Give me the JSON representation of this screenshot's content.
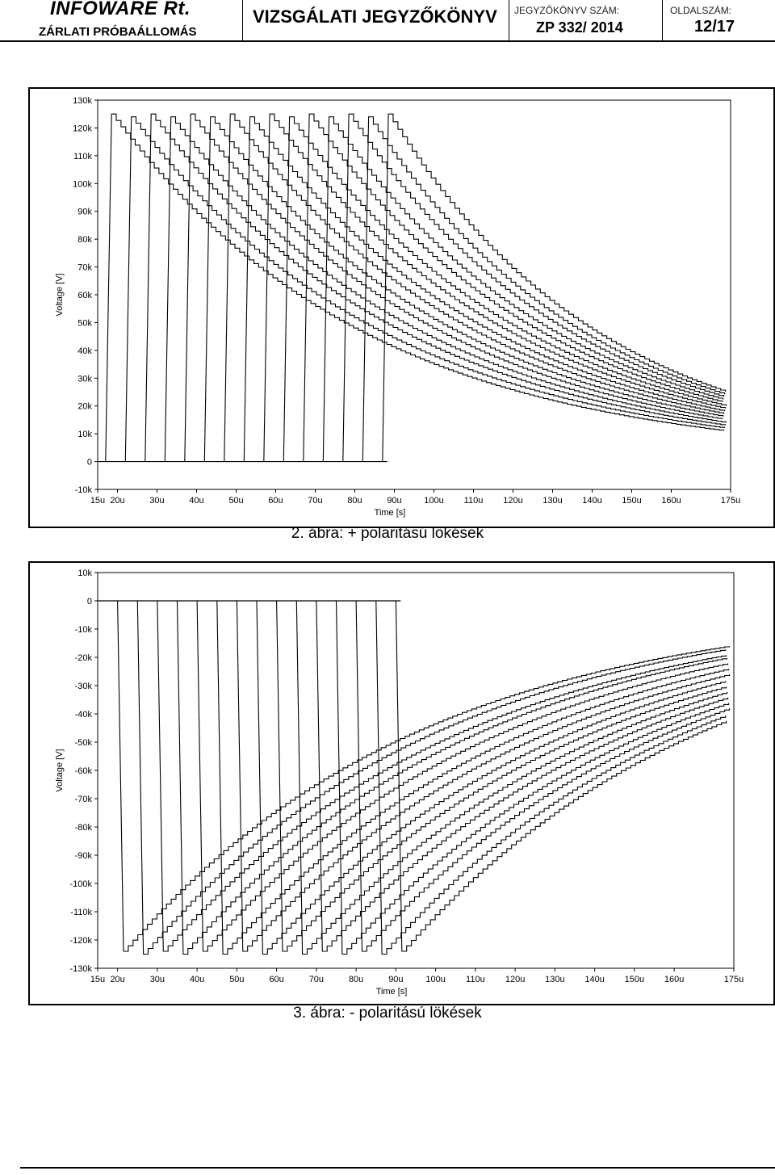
{
  "header": {
    "company": "INFOWARE Rt.",
    "company_sub": "ZÁRLATI PRÓBAÁLLOMÁS",
    "title": "VIZSGÁLATI JEGYZŐKÖNYV",
    "report_label": "JEGYZŐKÖNYV SZÁM:",
    "report_number": "ZP 332/ 2014",
    "page_label": "OLDALSZÁM:",
    "page_number": "12/17"
  },
  "captions": {
    "figure2": "2. ábra:  + polaritású lökések",
    "figure3": "3. ábra:  -  polaritású lökések"
  },
  "chart_data": [
    {
      "type": "line",
      "title": "",
      "xlabel": "Time [s]",
      "ylabel": "Voltage [V]",
      "xlim": [
        15,
        175
      ],
      "ylim": [
        -10,
        130
      ],
      "x_unit": "µs",
      "y_unit": "kV",
      "x_ticks": [
        "15u",
        "20u",
        "30u",
        "40u",
        "50u",
        "60u",
        "70u",
        "80u",
        "90u",
        "100u",
        "110u",
        "120u",
        "130u",
        "140u",
        "150u",
        "160u",
        "175u"
      ],
      "x_tick_values": [
        15,
        20,
        30,
        40,
        50,
        60,
        70,
        80,
        90,
        100,
        110,
        120,
        130,
        140,
        150,
        160,
        175
      ],
      "y_ticks": [
        "130k",
        "120k",
        "110k",
        "100k",
        "90k",
        "80k",
        "70k",
        "60k",
        "50k",
        "40k",
        "30k",
        "20k",
        "10k",
        "0",
        "-10k"
      ],
      "y_tick_values": [
        130,
        120,
        110,
        100,
        90,
        80,
        70,
        60,
        50,
        40,
        30,
        20,
        10,
        0,
        -10
      ],
      "grid": false,
      "series": [
        {
          "rise_start_us": 17.0,
          "peak_kv": 125,
          "end_kv": 11
        },
        {
          "rise_start_us": 22.0,
          "peak_kv": 124,
          "end_kv": 12
        },
        {
          "rise_start_us": 27.0,
          "peak_kv": 125,
          "end_kv": 13
        },
        {
          "rise_start_us": 32.0,
          "peak_kv": 124,
          "end_kv": 14
        },
        {
          "rise_start_us": 37.0,
          "peak_kv": 125,
          "end_kv": 15
        },
        {
          "rise_start_us": 42.0,
          "peak_kv": 124,
          "end_kv": 16
        },
        {
          "rise_start_us": 47.0,
          "peak_kv": 125,
          "end_kv": 17
        },
        {
          "rise_start_us": 52.0,
          "peak_kv": 124,
          "end_kv": 18
        },
        {
          "rise_start_us": 57.0,
          "peak_kv": 125,
          "end_kv": 19
        },
        {
          "rise_start_us": 62.0,
          "peak_kv": 124,
          "end_kv": 20
        },
        {
          "rise_start_us": 67.0,
          "peak_kv": 125,
          "end_kv": 21
        },
        {
          "rise_start_us": 72.0,
          "peak_kv": 124,
          "end_kv": 22
        },
        {
          "rise_start_us": 77.0,
          "peak_kv": 125,
          "end_kv": 23
        },
        {
          "rise_start_us": 82.0,
          "peak_kv": 124,
          "end_kv": 24
        },
        {
          "rise_start_us": 87.0,
          "peak_kv": 125,
          "end_kv": 25
        }
      ]
    },
    {
      "type": "line",
      "title": "",
      "xlabel": "Time [s]",
      "ylabel": "Voltage [V]",
      "xlim": [
        15,
        175
      ],
      "ylim": [
        -130,
        10
      ],
      "x_unit": "µs",
      "y_unit": "kV",
      "x_ticks": [
        "15u",
        "20u",
        "30u",
        "40u",
        "50u",
        "60u",
        "70u",
        "80u",
        "90u",
        "100u",
        "110u",
        "120u",
        "130u",
        "140u",
        "150u",
        "160u",
        "175u"
      ],
      "x_tick_values": [
        15,
        20,
        30,
        40,
        50,
        60,
        70,
        80,
        90,
        100,
        110,
        120,
        130,
        140,
        150,
        160,
        175
      ],
      "y_ticks": [
        "10k",
        "0",
        "-10k",
        "-20k",
        "-30k",
        "-40k",
        "-50k",
        "-60k",
        "-70k",
        "-80k",
        "-90k",
        "-100k",
        "-110k",
        "-120k",
        "-130k"
      ],
      "y_tick_values": [
        10,
        0,
        -10,
        -20,
        -30,
        -40,
        -50,
        -60,
        -70,
        -80,
        -90,
        -100,
        -110,
        -120,
        -130
      ],
      "grid": false,
      "series": [
        {
          "rise_start_us": 20.0,
          "peak_kv": -124,
          "end_kv": -16
        },
        {
          "rise_start_us": 25.0,
          "peak_kv": -125,
          "end_kv": -17
        },
        {
          "rise_start_us": 30.0,
          "peak_kv": -124,
          "end_kv": -19
        },
        {
          "rise_start_us": 35.0,
          "peak_kv": -125,
          "end_kv": -20
        },
        {
          "rise_start_us": 40.0,
          "peak_kv": -124,
          "end_kv": -22
        },
        {
          "rise_start_us": 45.0,
          "peak_kv": -125,
          "end_kv": -24
        },
        {
          "rise_start_us": 50.0,
          "peak_kv": -124,
          "end_kv": -26
        },
        {
          "rise_start_us": 55.0,
          "peak_kv": -125,
          "end_kv": -28
        },
        {
          "rise_start_us": 60.0,
          "peak_kv": -124,
          "end_kv": -30
        },
        {
          "rise_start_us": 65.0,
          "peak_kv": -125,
          "end_kv": -32
        },
        {
          "rise_start_us": 70.0,
          "peak_kv": -124,
          "end_kv": -34
        },
        {
          "rise_start_us": 75.0,
          "peak_kv": -125,
          "end_kv": -36
        },
        {
          "rise_start_us": 80.0,
          "peak_kv": -124,
          "end_kv": -38
        },
        {
          "rise_start_us": 85.0,
          "peak_kv": -125,
          "end_kv": -40
        },
        {
          "rise_start_us": 90.0,
          "peak_kv": -124,
          "end_kv": -42
        }
      ]
    }
  ]
}
